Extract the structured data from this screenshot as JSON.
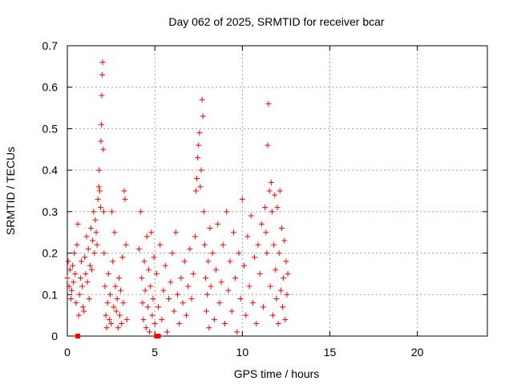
{
  "chart_data": {
    "type": "scatter",
    "title": "Day 062 of 2025, SRMTID for receiver bcar",
    "xlabel": "GPS time / hours",
    "ylabel": "SRMTID / TECUs",
    "xlim": [
      0,
      24
    ],
    "ylim": [
      0,
      0.7
    ],
    "xticks": [
      0,
      5,
      10,
      15,
      20
    ],
    "xtick_labels": [
      "0",
      "5",
      "10",
      "15",
      "20"
    ],
    "yticks": [
      0,
      0.1,
      0.2,
      0.3,
      0.4,
      0.5,
      0.6,
      0.7
    ],
    "ytick_labels": [
      "0",
      "0.1",
      "0.2",
      "0.3",
      "0.4",
      "0.5",
      "0.6",
      "0.7"
    ],
    "grid": true,
    "marker": "+",
    "color": "#ff0000",
    "series": [
      {
        "name": "SRMTID",
        "points": [
          [
            0.0,
            0.14
          ],
          [
            0.05,
            0.18
          ],
          [
            0.1,
            0.12
          ],
          [
            0.15,
            0.16
          ],
          [
            0.2,
            0.09
          ],
          [
            0.25,
            0.11
          ],
          [
            0.3,
            0.17
          ],
          [
            0.35,
            0.13
          ],
          [
            0.4,
            0.2
          ],
          [
            0.45,
            0.15
          ],
          [
            0.5,
            0.08
          ],
          [
            0.55,
            0.22
          ],
          [
            0.6,
            0.27
          ],
          [
            0.65,
            0.05
          ],
          [
            0.7,
            0.1
          ],
          [
            0.75,
            0.14
          ],
          [
            0.8,
            0.18
          ],
          [
            0.85,
            0.12
          ],
          [
            0.9,
            0.07
          ],
          [
            0.95,
            0.06
          ],
          [
            1.0,
            0.19
          ],
          [
            1.05,
            0.15
          ],
          [
            1.1,
            0.24
          ],
          [
            1.15,
            0.13
          ],
          [
            1.2,
            0.21
          ],
          [
            1.25,
            0.09
          ],
          [
            1.3,
            0.17
          ],
          [
            1.35,
            0.26
          ],
          [
            1.4,
            0.16
          ],
          [
            1.45,
            0.23
          ],
          [
            1.5,
            0.3
          ],
          [
            1.55,
            0.2
          ],
          [
            1.6,
            0.28
          ],
          [
            1.65,
            0.25
          ],
          [
            1.7,
            0.22
          ],
          [
            1.75,
            0.33
          ],
          [
            1.8,
            0.36
          ],
          [
            1.82,
            0.4
          ],
          [
            1.85,
            0.35
          ],
          [
            1.9,
            0.31
          ],
          [
            1.92,
            0.47
          ],
          [
            1.95,
            0.51
          ],
          [
            1.97,
            0.58
          ],
          [
            2.0,
            0.63
          ],
          [
            2.02,
            0.66
          ],
          [
            2.05,
            0.45
          ],
          [
            2.08,
            0.3
          ],
          [
            2.1,
            0.2
          ],
          [
            2.15,
            0.12
          ],
          [
            2.2,
            0.05
          ],
          [
            2.25,
            0.02
          ],
          [
            2.3,
            0.08
          ],
          [
            2.35,
            0.15
          ],
          [
            2.4,
            0.04
          ],
          [
            2.45,
            0.1
          ],
          [
            2.5,
            0.03
          ],
          [
            2.55,
            0.3
          ],
          [
            2.6,
            0.18
          ],
          [
            2.65,
            0.07
          ],
          [
            2.7,
            0.25
          ],
          [
            2.75,
            0.12
          ],
          [
            2.8,
            0.06
          ],
          [
            2.85,
            0.09
          ],
          [
            2.9,
            0.02
          ],
          [
            2.95,
            0.14
          ],
          [
            3.0,
            0.05
          ],
          [
            3.05,
            0.11
          ],
          [
            3.1,
            0.03
          ],
          [
            3.15,
            0.19
          ],
          [
            3.2,
            0.08
          ],
          [
            3.25,
            0.35
          ],
          [
            3.3,
            0.33
          ],
          [
            3.35,
            0.22
          ],
          [
            3.4,
            0.04
          ],
          [
            4.1,
            0.21
          ],
          [
            4.2,
            0.3
          ],
          [
            4.25,
            0.14
          ],
          [
            4.3,
            0.08
          ],
          [
            4.35,
            0.04
          ],
          [
            4.4,
            0.18
          ],
          [
            4.45,
            0.11
          ],
          [
            4.5,
            0.02
          ],
          [
            4.55,
            0.24
          ],
          [
            4.6,
            0.07
          ],
          [
            4.65,
            0.16
          ],
          [
            4.7,
            0.01
          ],
          [
            4.75,
            0.12
          ],
          [
            4.8,
            0.25
          ],
          [
            4.85,
            0.05
          ],
          [
            4.9,
            0.09
          ],
          [
            4.95,
            0.19
          ],
          [
            5.0,
            0.03
          ],
          [
            5.1,
            0.15
          ],
          [
            5.2,
            0.07
          ],
          [
            5.3,
            0.22
          ],
          [
            5.4,
            0.04
          ],
          [
            5.5,
            0.11
          ],
          [
            5.6,
            0.17
          ],
          [
            5.7,
            0.01
          ],
          [
            5.8,
            0.09
          ],
          [
            5.9,
            0.13
          ],
          [
            6.0,
            0.2
          ],
          [
            6.1,
            0.06
          ],
          [
            6.2,
            0.25
          ],
          [
            6.3,
            0.1
          ],
          [
            6.4,
            0.03
          ],
          [
            6.5,
            0.14
          ],
          [
            6.6,
            0.08
          ],
          [
            6.7,
            0.18
          ],
          [
            6.8,
            0.05
          ],
          [
            6.9,
            0.12
          ],
          [
            7.0,
            0.21
          ],
          [
            7.1,
            0.09
          ],
          [
            7.2,
            0.15
          ],
          [
            7.3,
            0.24
          ],
          [
            7.35,
            0.35
          ],
          [
            7.4,
            0.38
          ],
          [
            7.45,
            0.43
          ],
          [
            7.5,
            0.46
          ],
          [
            7.55,
            0.49
          ],
          [
            7.6,
            0.36
          ],
          [
            7.65,
            0.4
          ],
          [
            7.7,
            0.57
          ],
          [
            7.75,
            0.53
          ],
          [
            7.8,
            0.3
          ],
          [
            7.85,
            0.22
          ],
          [
            7.9,
            0.14
          ],
          [
            7.95,
            0.06
          ],
          [
            8.0,
            0.1
          ],
          [
            8.05,
            0.18
          ],
          [
            8.1,
            0.02
          ],
          [
            8.15,
            0.26
          ],
          [
            8.2,
            0.12
          ],
          [
            8.3,
            0.2
          ],
          [
            8.4,
            0.04
          ],
          [
            8.5,
            0.16
          ],
          [
            8.6,
            0.27
          ],
          [
            8.7,
            0.08
          ],
          [
            8.8,
            0.13
          ],
          [
            8.9,
            0.22
          ],
          [
            9.0,
            0.03
          ],
          [
            9.1,
            0.3
          ],
          [
            9.2,
            0.11
          ],
          [
            9.3,
            0.18
          ],
          [
            9.4,
            0.06
          ],
          [
            9.5,
            0.25
          ],
          [
            9.6,
            0.14
          ],
          [
            9.7,
            0.01
          ],
          [
            9.8,
            0.2
          ],
          [
            9.9,
            0.09
          ],
          [
            10.0,
            0.33
          ],
          [
            10.1,
            0.17
          ],
          [
            10.2,
            0.05
          ],
          [
            10.3,
            0.24
          ],
          [
            10.4,
            0.12
          ],
          [
            10.5,
            0.29
          ],
          [
            10.6,
            0.08
          ],
          [
            10.7,
            0.19
          ],
          [
            10.8,
            0.03
          ],
          [
            10.9,
            0.22
          ],
          [
            11.0,
            0.15
          ],
          [
            11.1,
            0.27
          ],
          [
            11.2,
            0.07
          ],
          [
            11.3,
            0.31
          ],
          [
            11.35,
            0.25
          ],
          [
            11.4,
            0.2
          ],
          [
            11.45,
            0.46
          ],
          [
            11.5,
            0.56
          ],
          [
            11.55,
            0.35
          ],
          [
            11.6,
            0.12
          ],
          [
            11.65,
            0.37
          ],
          [
            11.7,
            0.3
          ],
          [
            11.75,
            0.05
          ],
          [
            11.8,
            0.22
          ],
          [
            11.85,
            0.34
          ],
          [
            11.9,
            0.16
          ],
          [
            11.95,
            0.09
          ],
          [
            12.0,
            0.31
          ],
          [
            12.05,
            0.03
          ],
          [
            12.1,
            0.2
          ],
          [
            12.15,
            0.35
          ],
          [
            12.2,
            0.11
          ],
          [
            12.25,
            0.26
          ],
          [
            12.3,
            0.07
          ],
          [
            12.35,
            0.14
          ],
          [
            12.4,
            0.23
          ],
          [
            12.45,
            0.04
          ],
          [
            12.5,
            0.18
          ],
          [
            12.55,
            0.1
          ],
          [
            12.6,
            0.15
          ]
        ]
      },
      {
        "name": "baseline markers",
        "marker": "square",
        "points": [
          [
            0.6,
            0.0
          ],
          [
            5.1,
            0.0
          ],
          [
            5.2,
            0.0
          ]
        ]
      }
    ]
  }
}
